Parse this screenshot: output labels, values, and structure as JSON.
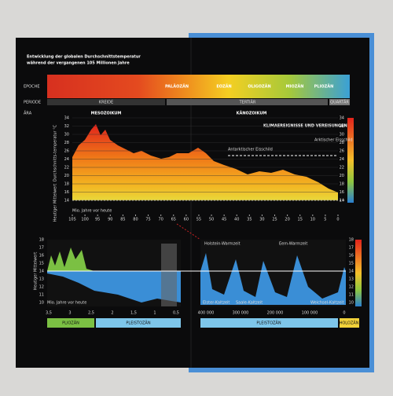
{
  "title": [
    "Entwicklung der globalen Durchschnittstemperatur",
    "während der vergangenen 105 Millionen Jahre"
  ],
  "rows": [
    "EPOCHE",
    "PERIODE",
    "ÄRA"
  ],
  "eras": [
    "MESOZOIKUM",
    "KÄNOZOIKUM"
  ],
  "periods": [
    "KREIDE",
    "TERTIÄR",
    "QUARTÄR"
  ],
  "epochs": [
    "PALÄOZÄN",
    "EOZÄN",
    "OLIGOZÄN",
    "MIOZÄN",
    "PLIOZÄN"
  ],
  "top_chart": {
    "y_label": "Durchschnitts-temperatur °C",
    "ref_label": "Heutiger Mittelwert",
    "x_label": "Mio. Jahre vor heute",
    "legend_title": "KLIMAEREIGNISSE UND VEREISUNGEN",
    "annotations": [
      "Antarktischer Eisschild",
      "Arktischer Eisschild"
    ],
    "y_ticks": [
      34,
      32,
      30,
      28,
      26,
      24,
      22,
      20,
      18,
      16,
      14
    ],
    "x_ticks": [
      105,
      100,
      95,
      90,
      85,
      80,
      75,
      70,
      65,
      60,
      55,
      50,
      45,
      40,
      35,
      30,
      25,
      20,
      15,
      10,
      5,
      0
    ]
  },
  "bottom_chart": {
    "left_x_label": "Mio. Jahre vor heute",
    "ref_label": "Heutiger Mittelwert",
    "warm_periods": [
      "Holstein-Warmzeit",
      "Eem-Warmzeit"
    ],
    "cold_periods": [
      "Elster-Kaltzeit",
      "Saale-Kaltzeit",
      "Weichsel-Kaltzeit"
    ],
    "left_x_ticks": [
      "3,5",
      "3",
      "2,5",
      "2",
      "1,5",
      "1",
      "0,5"
    ],
    "right_x_ticks": [
      "400 000",
      "300 000",
      "200 000",
      "100 000",
      "0"
    ],
    "y_ticks": [
      18,
      17,
      16,
      15,
      14,
      13,
      12,
      11,
      10
    ],
    "epochs": [
      "PLIOZÄN",
      "PLEISTOZÄN",
      "PLEISTOZÄN",
      "HOLOZÄN"
    ]
  }
}
